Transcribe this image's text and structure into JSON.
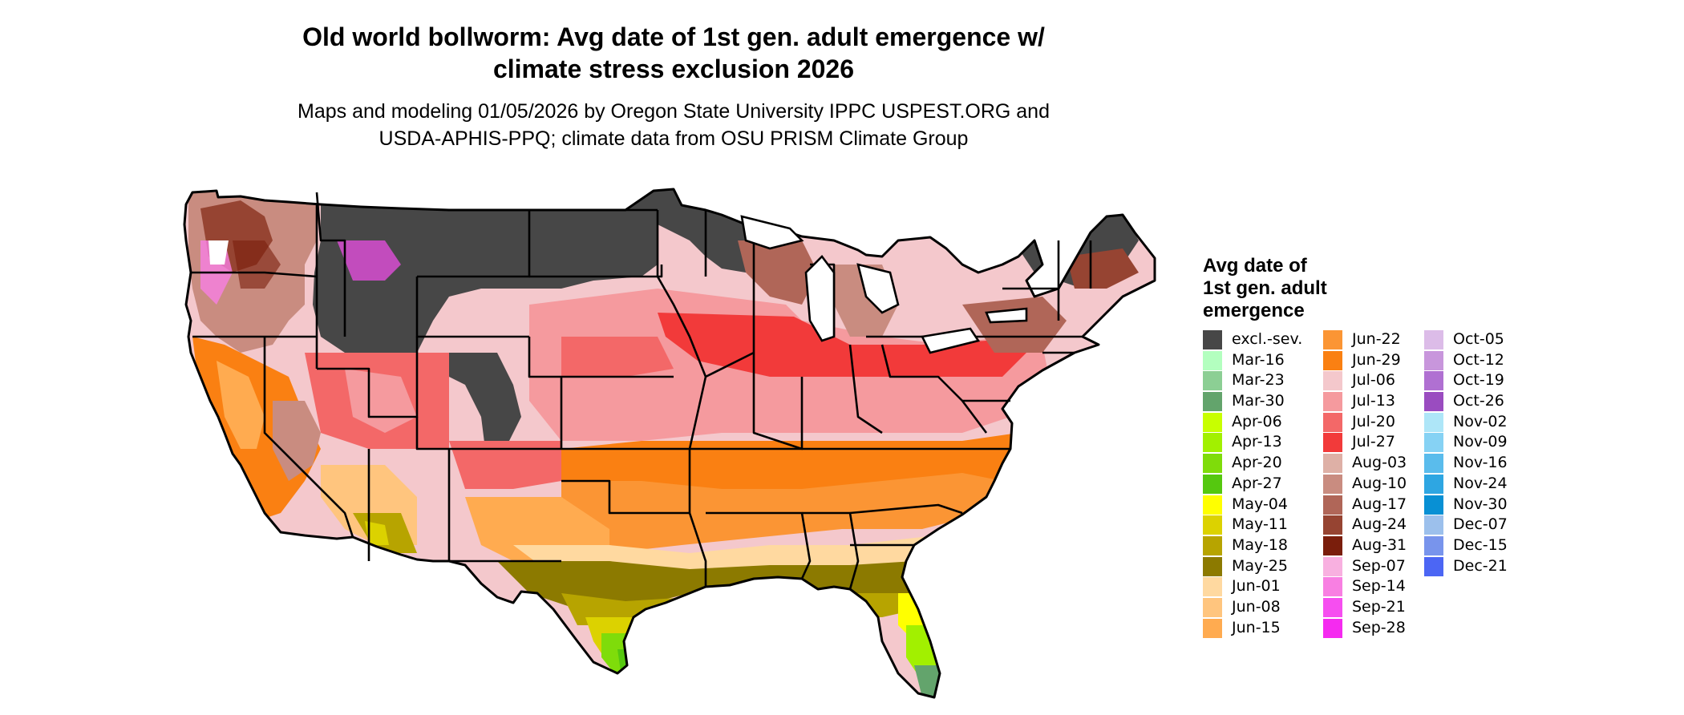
{
  "title": {
    "line1": "Old world bollworm: Avg date of 1st gen. adult emergence w/",
    "line2": "climate stress exclusion 2026"
  },
  "subtitle": {
    "line1": "Maps and modeling 01/05/2026 by Oregon State University IPPC USPEST.ORG and",
    "line2": "USDA-APHIS-PPQ; climate data from OSU PRISM Climate Group"
  },
  "legend": {
    "title_lines": [
      "Avg date of",
      "1st gen. adult",
      "emergence"
    ],
    "columns": [
      [
        {
          "label": "excl.-sev.",
          "color": "#474747"
        },
        {
          "label": "Mar-16",
          "color": "#b3ffbf"
        },
        {
          "label": "Mar-23",
          "color": "#8ccf94"
        },
        {
          "label": "Mar-30",
          "color": "#63a46c"
        },
        {
          "label": "Apr-06",
          "color": "#c8ff00"
        },
        {
          "label": "Apr-13",
          "color": "#a2f000"
        },
        {
          "label": "Apr-20",
          "color": "#7fdc0a"
        },
        {
          "label": "Apr-27",
          "color": "#55c80f"
        },
        {
          "label": "May-04",
          "color": "#ffff00"
        },
        {
          "label": "May-11",
          "color": "#dcd200"
        },
        {
          "label": "May-18",
          "color": "#b7a400"
        },
        {
          "label": "May-25",
          "color": "#8c7a00"
        },
        {
          "label": "Jun-01",
          "color": "#ffd9a0"
        },
        {
          "label": "Jun-08",
          "color": "#ffc57e"
        },
        {
          "label": "Jun-15",
          "color": "#ffab50"
        }
      ],
      [
        {
          "label": "Jun-22",
          "color": "#fb9534"
        },
        {
          "label": "Jun-29",
          "color": "#fa8012"
        },
        {
          "label": "Jul-06",
          "color": "#f4c8cc"
        },
        {
          "label": "Jul-13",
          "color": "#f59a9e"
        },
        {
          "label": "Jul-20",
          "color": "#f36868"
        },
        {
          "label": "Jul-27",
          "color": "#f23a3a"
        },
        {
          "label": "Aug-03",
          "color": "#deb0a6"
        },
        {
          "label": "Aug-10",
          "color": "#c98c80"
        },
        {
          "label": "Aug-17",
          "color": "#b06658"
        },
        {
          "label": "Aug-24",
          "color": "#964432"
        },
        {
          "label": "Aug-31",
          "color": "#7a1e0c"
        },
        {
          "label": "Sep-07",
          "color": "#f8b0e0"
        },
        {
          "label": "Sep-14",
          "color": "#f87fe2"
        },
        {
          "label": "Sep-21",
          "color": "#f64ef0"
        },
        {
          "label": "Sep-28",
          "color": "#f52af0"
        }
      ],
      [
        {
          "label": "Oct-05",
          "color": "#dcbce8"
        },
        {
          "label": "Oct-12",
          "color": "#c896dc"
        },
        {
          "label": "Oct-19",
          "color": "#b070d2"
        },
        {
          "label": "Oct-26",
          "color": "#9a4cc0"
        },
        {
          "label": "Nov-02",
          "color": "#aee6f8"
        },
        {
          "label": "Nov-09",
          "color": "#86d2f4"
        },
        {
          "label": "Nov-16",
          "color": "#5abcec"
        },
        {
          "label": "Nov-24",
          "color": "#2ea6e2"
        },
        {
          "label": "Nov-30",
          "color": "#0890d4"
        },
        {
          "label": "Dec-07",
          "color": "#9cc0ec"
        },
        {
          "label": "Dec-15",
          "color": "#7894ec"
        },
        {
          "label": "Dec-21",
          "color": "#4c66f4"
        }
      ]
    ]
  }
}
